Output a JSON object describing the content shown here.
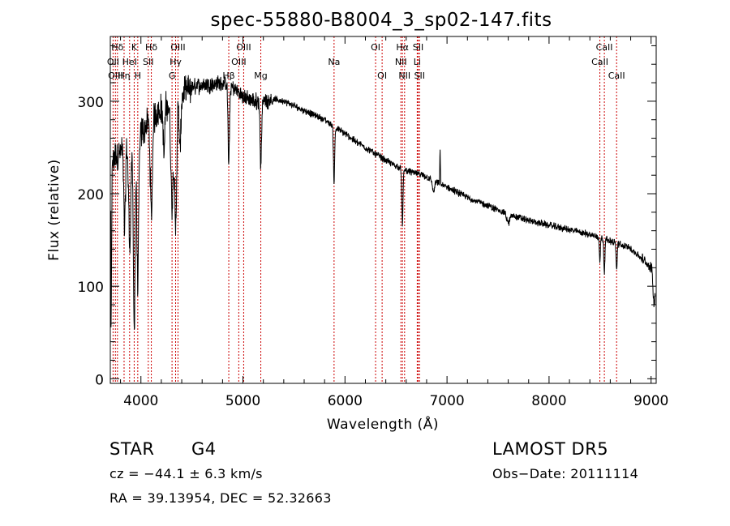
{
  "chart_data": {
    "type": "line",
    "title": "spec-55880-B8004_3_sp02-147.fits",
    "xlabel": "Wavelength (Å)",
    "ylabel": "Flux (relative)",
    "xlim": [
      3700,
      9050
    ],
    "ylim": [
      -5,
      370
    ],
    "xticks": [
      4000,
      5000,
      6000,
      7000,
      8000,
      9000
    ],
    "yticks": [
      0,
      100,
      200,
      300
    ],
    "grid": false,
    "line_color": "#000000",
    "marker_color": "#cc0000",
    "lines": [
      {
        "label": "Hδ",
        "wave": 3770,
        "row": 0
      },
      {
        "label": "OII",
        "wave": 3727,
        "row": 1
      },
      {
        "label": "OIII",
        "wave": 3750,
        "row": 2
      },
      {
        "label": "Hη",
        "wave": 3835,
        "row": 2
      },
      {
        "label": "K",
        "wave": 3934,
        "row": 0
      },
      {
        "label": "HeI",
        "wave": 3889,
        "row": 1
      },
      {
        "label": "H",
        "wave": 3969,
        "row": 2
      },
      {
        "label": "Hδ",
        "wave": 4102,
        "row": 0
      },
      {
        "label": "SII",
        "wave": 4072,
        "row": 1
      },
      {
        "label": "OIII",
        "wave": 4363,
        "row": 0
      },
      {
        "label": "Hγ",
        "wave": 4340,
        "row": 1
      },
      {
        "label": "G",
        "wave": 4305,
        "row": 2
      },
      {
        "label": "OIII",
        "wave": 5007,
        "row": 0
      },
      {
        "label": "OIII",
        "wave": 4959,
        "row": 1
      },
      {
        "label": "Hβ",
        "wave": 4861,
        "row": 2
      },
      {
        "label": "Mg",
        "wave": 5175,
        "row": 2
      },
      {
        "label": "Na",
        "wave": 5893,
        "row": 1
      },
      {
        "label": "OI",
        "wave": 6300,
        "row": 0
      },
      {
        "label": "OI",
        "wave": 6364,
        "row": 2
      },
      {
        "label": "Hα",
        "wave": 6563,
        "row": 0
      },
      {
        "label": "SII",
        "wave": 6717,
        "row": 0
      },
      {
        "label": "NII",
        "wave": 6548,
        "row": 1
      },
      {
        "label": "Li",
        "wave": 6708,
        "row": 1
      },
      {
        "label": "NII",
        "wave": 6584,
        "row": 2
      },
      {
        "label": "SII",
        "wave": 6731,
        "row": 2
      },
      {
        "label": "CaII",
        "wave": 8542,
        "row": 0
      },
      {
        "label": "CaII",
        "wave": 8498,
        "row": 1
      },
      {
        "label": "CaII",
        "wave": 8662,
        "row": 2
      }
    ],
    "continuum": {
      "wave": [
        3700,
        3800,
        3900,
        4000,
        4100,
        4200,
        4300,
        4400,
        4500,
        4600,
        4700,
        4800,
        4900,
        5000,
        5100,
        5200,
        5300,
        5400,
        5500,
        5600,
        5700,
        5800,
        5900,
        6000,
        6100,
        6200,
        6300,
        6400,
        6500,
        6600,
        6700,
        6800,
        6900,
        7000,
        7200,
        7400,
        7600,
        7800,
        8000,
        8200,
        8400,
        8600,
        8800,
        9000
      ],
      "flux": [
        235,
        245,
        255,
        265,
        282,
        292,
        298,
        305,
        315,
        318,
        318,
        320,
        315,
        305,
        300,
        300,
        302,
        300,
        295,
        290,
        285,
        280,
        272,
        265,
        257,
        250,
        243,
        236,
        230,
        225,
        222,
        218,
        212,
        207,
        196,
        187,
        178,
        171,
        166,
        161,
        156,
        149,
        141,
        120
      ]
    },
    "features": [
      {
        "wave": 3705,
        "depth": 210,
        "width": 6
      },
      {
        "wave": 3840,
        "depth": 90,
        "width": 8
      },
      {
        "wave": 3890,
        "depth": 110,
        "width": 10
      },
      {
        "wave": 3934,
        "depth": 200,
        "width": 9
      },
      {
        "wave": 3969,
        "depth": 160,
        "width": 9
      },
      {
        "wave": 4102,
        "depth": 110,
        "width": 10
      },
      {
        "wave": 4226,
        "depth": 50,
        "width": 8
      },
      {
        "wave": 4305,
        "depth": 110,
        "width": 12
      },
      {
        "wave": 4340,
        "depth": 140,
        "width": 10
      },
      {
        "wave": 4383,
        "depth": 60,
        "width": 8
      },
      {
        "wave": 4861,
        "depth": 85,
        "width": 7
      },
      {
        "wave": 5175,
        "depth": 70,
        "width": 7
      },
      {
        "wave": 5893,
        "depth": 60,
        "width": 6
      },
      {
        "wave": 6563,
        "depth": 60,
        "width": 6
      },
      {
        "wave": 6867,
        "depth": 12,
        "width": 10
      },
      {
        "wave": 7600,
        "depth": 10,
        "width": 14
      },
      {
        "wave": 8498,
        "depth": 25,
        "width": 5
      },
      {
        "wave": 8542,
        "depth": 35,
        "width": 5
      },
      {
        "wave": 8662,
        "depth": 30,
        "width": 5
      },
      {
        "wave": 9030,
        "depth": 40,
        "width": 10
      }
    ],
    "emission": [
      {
        "wave": 6932,
        "height": 35,
        "width": 3
      }
    ]
  },
  "info": {
    "object_class": "STAR",
    "subclass": "G4",
    "survey": "LAMOST  DR5",
    "cz_line": "cz = −44.1 ± 6.3 km/s",
    "obs_date": "Obs−Date: 20111114",
    "coords": "RA =  39.13954, DEC =  52.32663"
  }
}
